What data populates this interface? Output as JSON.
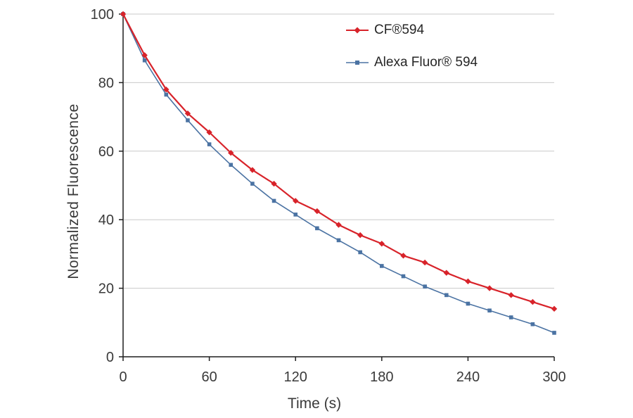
{
  "chart_data": {
    "type": "line",
    "title": "",
    "xlabel": "Time (s)",
    "ylabel": "Normalized Fluorescence",
    "xlim": [
      0,
      300
    ],
    "ylim": [
      0,
      100
    ],
    "x_ticks": [
      0,
      60,
      120,
      180,
      240,
      300
    ],
    "y_ticks": [
      0,
      20,
      40,
      60,
      80,
      100
    ],
    "grid": "horizontal-only",
    "legend_position": "top-center-inside",
    "x": [
      0,
      15,
      30,
      45,
      60,
      75,
      90,
      105,
      120,
      135,
      150,
      165,
      180,
      195,
      210,
      225,
      240,
      255,
      270,
      285,
      300
    ],
    "series": [
      {
        "name": "CF®594",
        "color": "#d8232a",
        "marker": "diamond",
        "values": [
          100,
          88,
          78,
          71,
          65.5,
          59.5,
          54.5,
          50.5,
          45.5,
          42.5,
          38.5,
          35.5,
          33,
          29.5,
          27.5,
          24.5,
          22,
          20,
          18,
          16,
          14
        ]
      },
      {
        "name": "Alexa Fluor® 594",
        "color": "#4b73a3",
        "marker": "square",
        "values": [
          100,
          86.5,
          76.5,
          69,
          62,
          56,
          50.5,
          45.5,
          41.5,
          37.5,
          34,
          30.5,
          26.5,
          23.5,
          20.5,
          18,
          15.5,
          13.5,
          11.5,
          9.5,
          7
        ]
      }
    ],
    "colors": {
      "axis": "#1f1f1f",
      "grid": "#c9c9c9",
      "tick_text": "#3a3a3a"
    }
  }
}
